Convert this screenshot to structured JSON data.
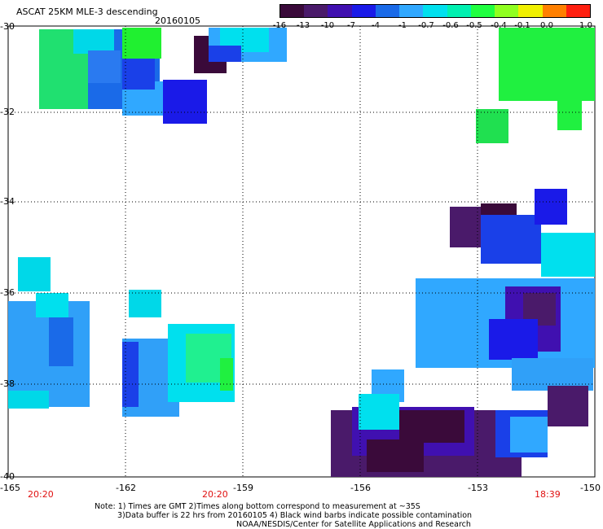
{
  "header": {
    "title": "ASCAT 25KM MLE-3 descending",
    "date": "20160105"
  },
  "colorbar": {
    "ticks": [
      "-16",
      "-13",
      "-10",
      "-7",
      "-4",
      "-1",
      "-0.7",
      "-0.6",
      "-0.5",
      "-0.4",
      "-0.1",
      "0.0",
      "1.0"
    ],
    "colors": [
      "#3a0a3a",
      "#4a1a6a",
      "#4010b0",
      "#1a1ae8",
      "#1a6ae8",
      "#30a8ff",
      "#00e0ee",
      "#00f0b0",
      "#20ff40",
      "#90ff20",
      "#f0f000",
      "#ff8000",
      "#ff2010"
    ]
  },
  "axes": {
    "y_labels": [
      "-30",
      "-32",
      "-34",
      "-36",
      "-38",
      "-40"
    ],
    "x_labels": [
      "-165",
      "-162",
      "-159",
      "-156",
      "-153",
      "-150"
    ],
    "time_labels": [
      "20:20",
      "20:20",
      "18:39"
    ]
  },
  "notes": {
    "line1": "Note: 1) Times are GMT 2)Times along bottom correspond to measurement at ~35S",
    "line2": "3)Data buffer is 22 hrs from 20160105 4) Black wind barbs indicate possible contamination",
    "line3": "NOAA/NESDIS/Center for Satellite Applications and Research"
  }
}
